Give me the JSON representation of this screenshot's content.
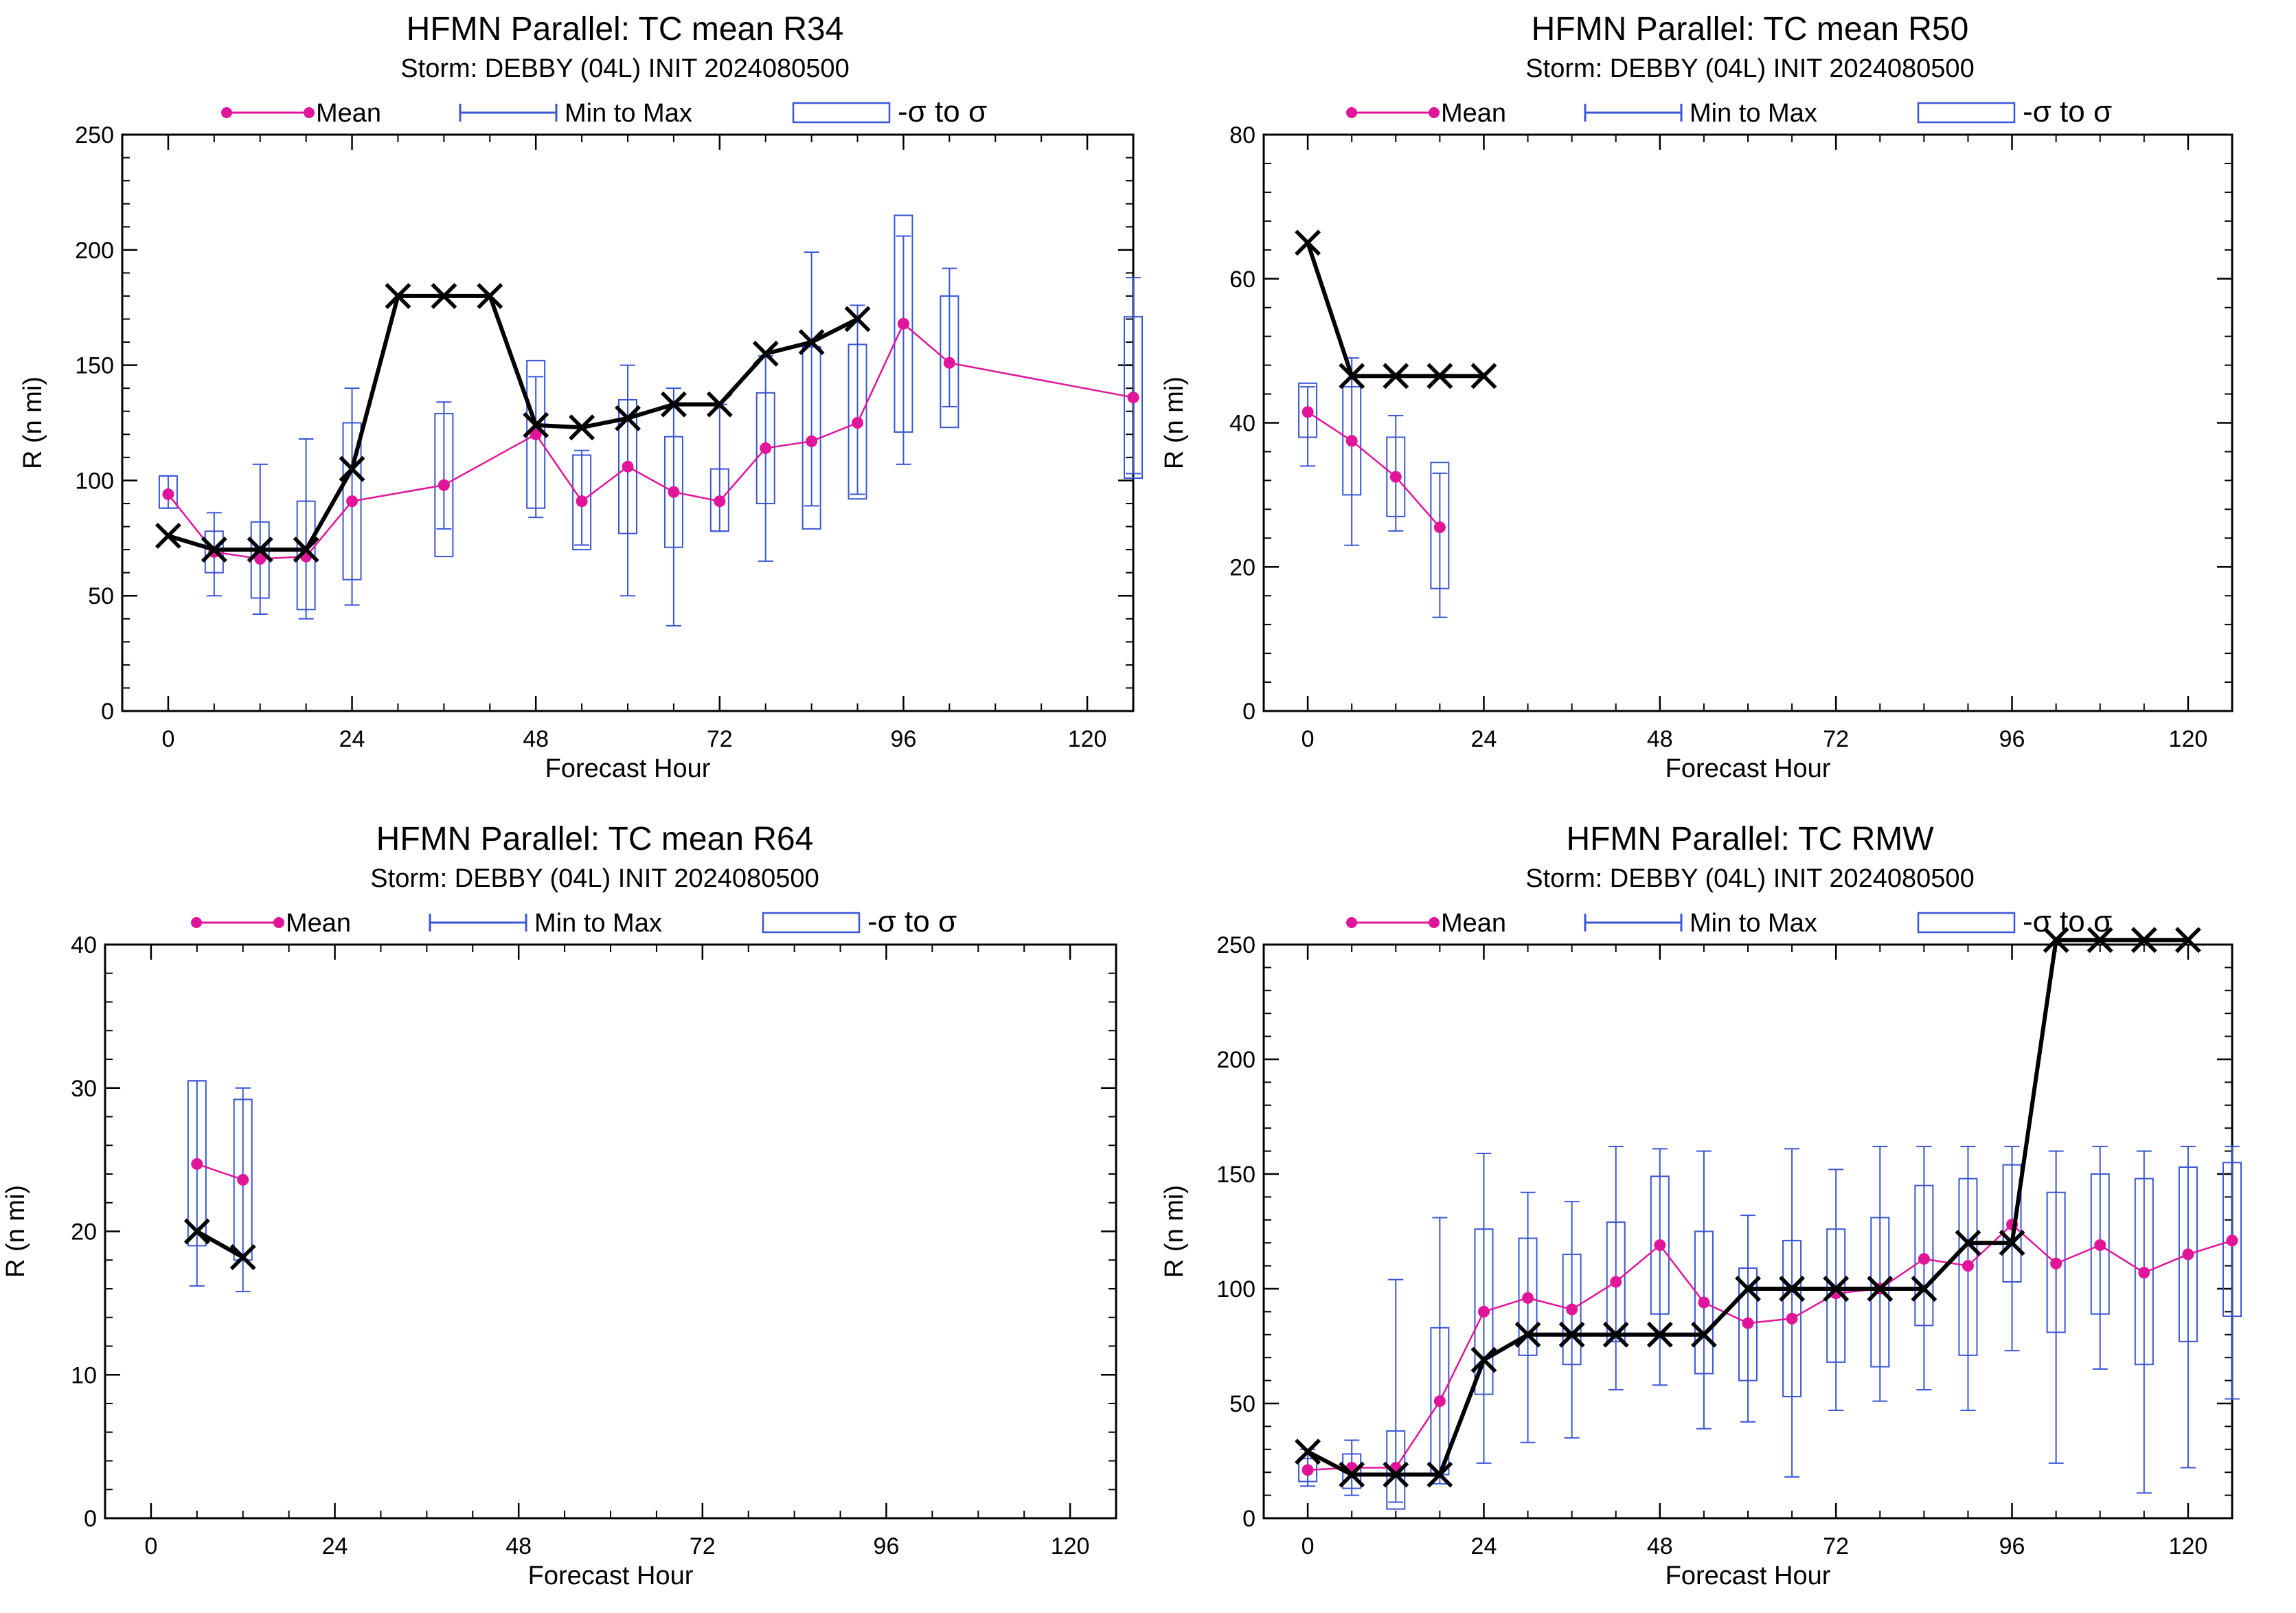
{
  "legend": {
    "mean": "Mean",
    "minmax": "Min to Max",
    "sigma": "-σ to σ"
  },
  "colors": {
    "mean": "#e0159a",
    "box": "#3a55d6",
    "obs": "#000000"
  },
  "chart_data": [
    {
      "type": "box",
      "title": "HFMN Parallel: TC mean R34",
      "subtitle": "Storm: DEBBY (04L) INIT 2024080500",
      "xlabel": "Forecast Hour",
      "ylabel": "R (n mi)",
      "xlim": [
        -6,
        126
      ],
      "ylim": [
        0,
        250
      ],
      "xticks": [
        0,
        24,
        48,
        72,
        96,
        120
      ],
      "yticks": [
        0,
        50,
        100,
        150,
        200,
        250
      ],
      "mean": [
        [
          0,
          94
        ],
        [
          6,
          69
        ],
        [
          12,
          66
        ],
        [
          18,
          67
        ],
        [
          24,
          91
        ],
        [
          36,
          98
        ],
        [
          48,
          120
        ],
        [
          54,
          91
        ],
        [
          60,
          106
        ],
        [
          66,
          95
        ],
        [
          72,
          91
        ],
        [
          78,
          114
        ],
        [
          84,
          117
        ],
        [
          90,
          125
        ],
        [
          96,
          168
        ],
        [
          102,
          151
        ],
        [
          126,
          136
        ]
      ],
      "boxes": [
        {
          "x": 0,
          "min": 88,
          "max": 102,
          "lo": 88,
          "hi": 102
        },
        {
          "x": 6,
          "min": 50,
          "max": 86,
          "lo": 60,
          "hi": 78
        },
        {
          "x": 12,
          "min": 42,
          "max": 107,
          "lo": 49,
          "hi": 82
        },
        {
          "x": 18,
          "min": 40,
          "max": 118,
          "lo": 44,
          "hi": 91
        },
        {
          "x": 24,
          "min": 46,
          "max": 140,
          "lo": 57,
          "hi": 125
        },
        {
          "x": 36,
          "min": 79,
          "max": 134,
          "lo": 67,
          "hi": 129
        },
        {
          "x": 48,
          "min": 84,
          "max": 145,
          "lo": 88,
          "hi": 152
        },
        {
          "x": 54,
          "min": 72,
          "max": 113,
          "lo": 70,
          "hi": 111
        },
        {
          "x": 60,
          "min": 50,
          "max": 150,
          "lo": 77,
          "hi": 135
        },
        {
          "x": 66,
          "min": 37,
          "max": 140,
          "lo": 71,
          "hi": 119
        },
        {
          "x": 72,
          "min": 78,
          "max": 133,
          "lo": 78,
          "hi": 105
        },
        {
          "x": 78,
          "min": 65,
          "max": 154,
          "lo": 90,
          "hi": 138
        },
        {
          "x": 84,
          "min": 89,
          "max": 199,
          "lo": 79,
          "hi": 158
        },
        {
          "x": 90,
          "min": 94,
          "max": 176,
          "lo": 92,
          "hi": 159
        },
        {
          "x": 96,
          "min": 107,
          "max": 206,
          "lo": 121,
          "hi": 215
        },
        {
          "x": 102,
          "min": 132,
          "max": 192,
          "lo": 123,
          "hi": 180
        },
        {
          "x": 126,
          "min": 103,
          "max": 188,
          "lo": 101,
          "hi": 171
        }
      ],
      "obs": [
        [
          0,
          76
        ],
        [
          6,
          70
        ],
        [
          12,
          70
        ],
        [
          18,
          70
        ],
        [
          24,
          105
        ],
        [
          30,
          180
        ],
        [
          36,
          180
        ],
        [
          42,
          180
        ],
        [
          48,
          124
        ],
        [
          54,
          123
        ],
        [
          60,
          127
        ],
        [
          66,
          133
        ],
        [
          72,
          133
        ],
        [
          78,
          155
        ],
        [
          84,
          160
        ],
        [
          90,
          170
        ]
      ]
    },
    {
      "type": "box",
      "title": "HFMN Parallel: TC mean R50",
      "subtitle": "Storm: DEBBY (04L) INIT 2024080500",
      "xlabel": "Forecast Hour",
      "ylabel": "R (n mi)",
      "xlim": [
        -6,
        126
      ],
      "ylim": [
        0,
        80
      ],
      "xticks": [
        0,
        24,
        48,
        72,
        96,
        120
      ],
      "yticks": [
        0,
        20,
        40,
        60,
        80
      ],
      "mean": [
        [
          0,
          41.5
        ],
        [
          6,
          37.5
        ],
        [
          12,
          32.5
        ],
        [
          18,
          25.5
        ]
      ],
      "boxes": [
        {
          "x": 0,
          "min": 34,
          "max": 45,
          "lo": 38,
          "hi": 45.5
        },
        {
          "x": 6,
          "min": 23,
          "max": 49,
          "lo": 30,
          "hi": 45
        },
        {
          "x": 12,
          "min": 25,
          "max": 41,
          "lo": 27,
          "hi": 38
        },
        {
          "x": 18,
          "min": 13,
          "max": 33,
          "lo": 17,
          "hi": 34.5
        }
      ],
      "obs": [
        [
          0,
          65
        ],
        [
          6,
          46.5
        ],
        [
          12,
          46.5
        ],
        [
          18,
          46.5
        ],
        [
          24,
          46.5
        ]
      ]
    },
    {
      "type": "box",
      "title": "HFMN Parallel: TC mean R64",
      "subtitle": "Storm: DEBBY (04L) INIT 2024080500",
      "xlabel": "Forecast Hour",
      "ylabel": "R (n mi)",
      "xlim": [
        -6,
        126
      ],
      "ylim": [
        0,
        40
      ],
      "xticks": [
        0,
        24,
        48,
        72,
        96,
        120
      ],
      "yticks": [
        0,
        10,
        20,
        30,
        40
      ],
      "mean": [
        [
          6,
          24.7
        ],
        [
          12,
          23.6
        ]
      ],
      "boxes": [
        {
          "x": 6,
          "min": 16.2,
          "max": 30.5,
          "lo": 19,
          "hi": 30.5
        },
        {
          "x": 12,
          "min": 15.8,
          "max": 30,
          "lo": 18,
          "hi": 29.2
        }
      ],
      "obs": [
        [
          6,
          20
        ],
        [
          12,
          18.2
        ]
      ]
    },
    {
      "type": "box",
      "title": "HFMN Parallel: TC RMW",
      "subtitle": "Storm: DEBBY (04L) INIT 2024080500",
      "xlabel": "Forecast Hour",
      "ylabel": "R (n mi)",
      "xlim": [
        -6,
        126
      ],
      "ylim": [
        0,
        250
      ],
      "xticks": [
        0,
        24,
        48,
        72,
        96,
        120
      ],
      "yticks": [
        0,
        50,
        100,
        150,
        200,
        250
      ],
      "mean": [
        [
          0,
          21
        ],
        [
          6,
          22
        ],
        [
          12,
          22
        ],
        [
          18,
          51
        ],
        [
          24,
          90
        ],
        [
          30,
          96
        ],
        [
          36,
          91
        ],
        [
          42,
          103
        ],
        [
          48,
          119
        ],
        [
          54,
          94
        ],
        [
          60,
          85
        ],
        [
          66,
          87
        ],
        [
          72,
          98
        ],
        [
          78,
          100
        ],
        [
          84,
          113
        ],
        [
          90,
          110
        ],
        [
          96,
          128
        ],
        [
          102,
          111
        ],
        [
          108,
          119
        ],
        [
          114,
          107
        ],
        [
          120,
          115
        ],
        [
          126,
          121
        ]
      ],
      "boxes": [
        {
          "x": 0,
          "min": 14,
          "max": 30,
          "lo": 16,
          "hi": 26
        },
        {
          "x": 6,
          "min": 10,
          "max": 34,
          "lo": 13,
          "hi": 28
        },
        {
          "x": 12,
          "min": 7,
          "max": 104,
          "lo": 4,
          "hi": 38
        },
        {
          "x": 18,
          "min": 15,
          "max": 131,
          "lo": 19,
          "hi": 83
        },
        {
          "x": 24,
          "min": 24,
          "max": 159,
          "lo": 54,
          "hi": 126
        },
        {
          "x": 30,
          "min": 33,
          "max": 142,
          "lo": 71,
          "hi": 122
        },
        {
          "x": 36,
          "min": 35,
          "max": 138,
          "lo": 67,
          "hi": 115
        },
        {
          "x": 42,
          "min": 56,
          "max": 162,
          "lo": 77,
          "hi": 129
        },
        {
          "x": 48,
          "min": 58,
          "max": 161,
          "lo": 89,
          "hi": 149
        },
        {
          "x": 54,
          "min": 39,
          "max": 160,
          "lo": 63,
          "hi": 125
        },
        {
          "x": 60,
          "min": 42,
          "max": 132,
          "lo": 60,
          "hi": 109
        },
        {
          "x": 66,
          "min": 18,
          "max": 161,
          "lo": 53,
          "hi": 121
        },
        {
          "x": 72,
          "min": 47,
          "max": 152,
          "lo": 68,
          "hi": 126
        },
        {
          "x": 78,
          "min": 51,
          "max": 162,
          "lo": 66,
          "hi": 131
        },
        {
          "x": 84,
          "min": 56,
          "max": 162,
          "lo": 84,
          "hi": 145
        },
        {
          "x": 90,
          "min": 47,
          "max": 162,
          "lo": 71,
          "hi": 148
        },
        {
          "x": 96,
          "min": 73,
          "max": 162,
          "lo": 103,
          "hi": 154
        },
        {
          "x": 102,
          "min": 24,
          "max": 160,
          "lo": 81,
          "hi": 142
        },
        {
          "x": 108,
          "min": 65,
          "max": 162,
          "lo": 89,
          "hi": 150
        },
        {
          "x": 114,
          "min": 11,
          "max": 160,
          "lo": 67,
          "hi": 148
        },
        {
          "x": 120,
          "min": 22,
          "max": 162,
          "lo": 77,
          "hi": 153
        },
        {
          "x": 126,
          "min": 52,
          "max": 162,
          "lo": 88,
          "hi": 155
        }
      ],
      "obs": [
        [
          0,
          29
        ],
        [
          6,
          19
        ],
        [
          12,
          19
        ],
        [
          18,
          19
        ],
        [
          24,
          69
        ],
        [
          30,
          80
        ],
        [
          36,
          80
        ],
        [
          42,
          80
        ],
        [
          48,
          80
        ],
        [
          54,
          80
        ],
        [
          60,
          100
        ],
        [
          66,
          100
        ],
        [
          72,
          100
        ],
        [
          78,
          100
        ],
        [
          84,
          100
        ],
        [
          90,
          120
        ],
        [
          96,
          120
        ],
        [
          102,
          252
        ],
        [
          108,
          252
        ],
        [
          114,
          252
        ],
        [
          120,
          252
        ]
      ]
    }
  ]
}
